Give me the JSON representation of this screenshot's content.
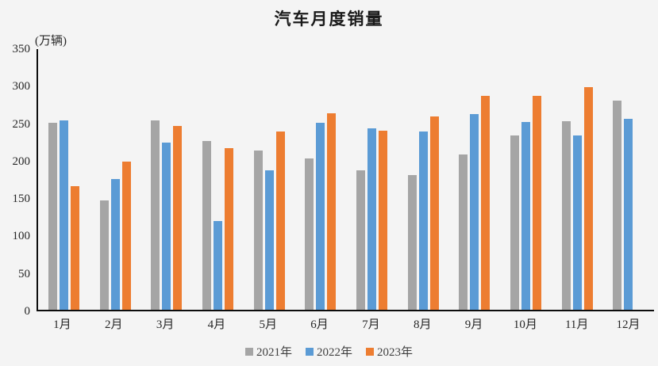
{
  "chart_data": {
    "type": "bar",
    "title": "汽车月度销量",
    "unit_label": "(万辆)",
    "categories": [
      "1月",
      "2月",
      "3月",
      "4月",
      "5月",
      "6月",
      "7月",
      "8月",
      "9月",
      "10月",
      "11月",
      "12月"
    ],
    "series": [
      {
        "name": "2021年",
        "color": "#A5A5A5",
        "values": [
          250,
          146,
          253,
          225,
          213,
          202,
          186,
          180,
          207,
          233,
          252,
          279
        ]
      },
      {
        "name": "2022年",
        "color": "#5B9BD5",
        "values": [
          253,
          174,
          223,
          118,
          186,
          250,
          242,
          238,
          261,
          251,
          233,
          255
        ]
      },
      {
        "name": "2023年",
        "color": "#ED7D31",
        "values": [
          165,
          198,
          245,
          216,
          238,
          262,
          239,
          258,
          286,
          285,
          297,
          null
        ]
      }
    ],
    "ylim": [
      0,
      350
    ],
    "ytick_step": 50,
    "yticks": [
      0,
      50,
      100,
      150,
      200,
      250,
      300,
      350
    ],
    "xlabel": "",
    "ylabel": "",
    "grid": false,
    "legend_position": "bottom"
  },
  "colors": {
    "background": "#F4F4F4",
    "axis": "#0d0d0d",
    "text": "#262626"
  }
}
